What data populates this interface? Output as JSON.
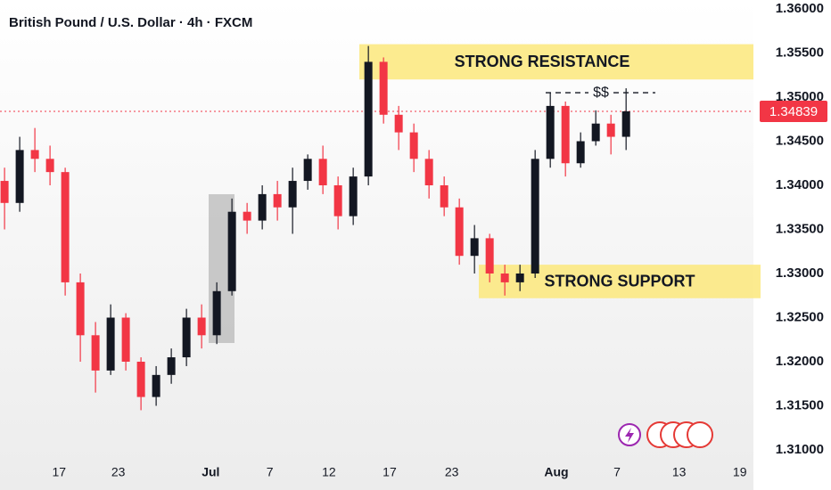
{
  "chart_data": {
    "type": "candlestick",
    "title": "British Pound / U.S. Dollar · 4h · FXCM",
    "x": [
      0,
      1,
      2,
      3,
      4,
      5,
      6,
      7,
      8,
      9,
      10,
      11,
      12,
      13,
      14,
      15,
      16,
      17,
      18,
      19,
      20,
      21,
      22,
      23,
      24,
      25,
      26,
      27,
      28,
      29,
      30,
      31,
      32,
      33,
      34,
      35,
      36,
      37,
      38,
      39,
      40,
      41
    ],
    "series": [
      {
        "open": [
          1.3405,
          1.338,
          1.344,
          1.343,
          1.3415,
          1.329,
          1.323,
          1.319,
          1.325,
          1.32,
          1.316,
          1.3185,
          1.3205,
          1.325,
          1.323,
          1.328,
          1.337,
          1.336,
          1.339,
          1.3375,
          1.3405,
          1.343,
          1.34,
          1.3365,
          1.341,
          1.354,
          1.348,
          1.346,
          1.343,
          1.34,
          1.3375,
          1.332,
          1.334,
          1.33,
          1.329,
          1.33,
          1.343,
          1.349,
          1.3425,
          1.345,
          1.347,
          1.3455
        ],
        "high": [
          1.342,
          1.3455,
          1.3465,
          1.3445,
          1.342,
          1.33,
          1.3245,
          1.3265,
          1.3255,
          1.3205,
          1.3195,
          1.3215,
          1.326,
          1.3265,
          1.329,
          1.3385,
          1.338,
          1.34,
          1.3405,
          1.342,
          1.3435,
          1.3445,
          1.341,
          1.342,
          1.3558,
          1.3545,
          1.349,
          1.347,
          1.344,
          1.341,
          1.3385,
          1.3355,
          1.3345,
          1.331,
          1.331,
          1.344,
          1.3505,
          1.3495,
          1.346,
          1.3485,
          1.348,
          1.351
        ],
        "low": [
          1.335,
          1.337,
          1.3415,
          1.34,
          1.3275,
          1.32,
          1.3165,
          1.3185,
          1.319,
          1.3145,
          1.315,
          1.3175,
          1.3195,
          1.3215,
          1.322,
          1.3275,
          1.3345,
          1.335,
          1.336,
          1.3345,
          1.3395,
          1.339,
          1.335,
          1.3355,
          1.34,
          1.347,
          1.344,
          1.3415,
          1.3385,
          1.3365,
          1.331,
          1.33,
          1.329,
          1.3275,
          1.328,
          1.3295,
          1.342,
          1.341,
          1.342,
          1.3445,
          1.3435,
          1.344
        ],
        "close": [
          1.338,
          1.344,
          1.343,
          1.3415,
          1.329,
          1.323,
          1.319,
          1.325,
          1.32,
          1.316,
          1.3185,
          1.3205,
          1.325,
          1.323,
          1.328,
          1.337,
          1.336,
          1.339,
          1.3375,
          1.3405,
          1.343,
          1.34,
          1.3365,
          1.341,
          1.354,
          1.348,
          1.346,
          1.343,
          1.34,
          1.3375,
          1.332,
          1.334,
          1.33,
          1.329,
          1.33,
          1.343,
          1.349,
          1.3425,
          1.345,
          1.347,
          1.3455,
          1.34839
        ]
      }
    ],
    "up_color": "#131722",
    "down_color": "#f23645",
    "last_price": 1.34839,
    "last_price_color": "#f23645",
    "xlim": [
      -0.3,
      49.4
    ],
    "xticks": [
      {
        "value": 3.6,
        "label": "17"
      },
      {
        "value": 7.5,
        "label": "23"
      },
      {
        "value": 13.6,
        "label": "Jul"
      },
      {
        "value": 17.5,
        "label": "7"
      },
      {
        "value": 21.4,
        "label": "12"
      },
      {
        "value": 25.4,
        "label": "17"
      },
      {
        "value": 29.5,
        "label": "23"
      },
      {
        "value": 36.4,
        "label": "Aug"
      },
      {
        "value": 40.4,
        "label": "7"
      },
      {
        "value": 44.5,
        "label": "13"
      },
      {
        "value": 48.5,
        "label": "19"
      }
    ],
    "ylim": [
      1.31,
      1.36
    ],
    "yticks": [
      {
        "value": 1.31,
        "label": "1.31000"
      },
      {
        "value": 1.315,
        "label": "1.31500"
      },
      {
        "value": 1.32,
        "label": "1.32000"
      },
      {
        "value": 1.325,
        "label": "1.32500"
      },
      {
        "value": 1.33,
        "label": "1.33000"
      },
      {
        "value": 1.335,
        "label": "1.33500"
      },
      {
        "value": 1.34,
        "label": "1.34000"
      },
      {
        "value": 1.345,
        "label": "1.34500"
      },
      {
        "value": 1.35,
        "label": "1.35000"
      },
      {
        "value": 1.355,
        "label": "1.35500"
      },
      {
        "value": 1.36,
        "label": "1.36000"
      }
    ],
    "zones": [
      {
        "label": "STRONG RESISTANCE",
        "from": 1.352,
        "to": 1.356
      },
      {
        "label": "STRONG SUPPORT",
        "from": 1.3272,
        "to": 1.331
      }
    ],
    "level": {
      "label": "$$",
      "value": 1.3505
    }
  }
}
